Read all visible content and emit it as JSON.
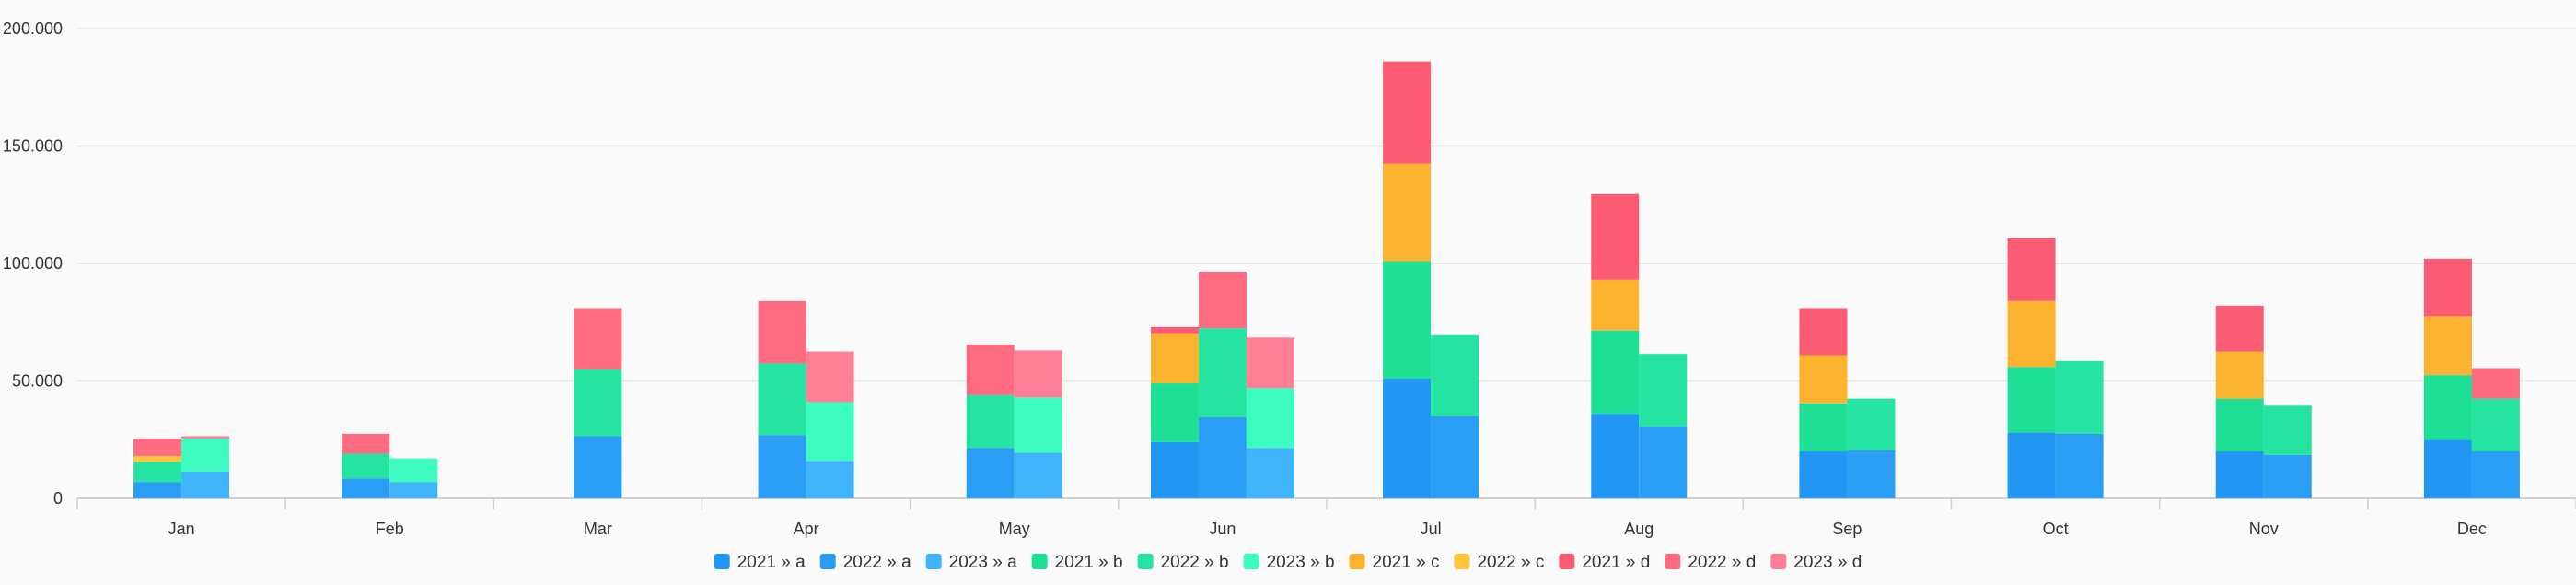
{
  "chart_data": {
    "type": "bar",
    "stacked": true,
    "grid": true,
    "legend_position": "bottom",
    "ylim": [
      0,
      200000
    ],
    "y_ticks": [
      {
        "value": 0,
        "label": "0"
      },
      {
        "value": 50000,
        "label": "50.000"
      },
      {
        "value": 100000,
        "label": "100.000"
      },
      {
        "value": 150000,
        "label": "150.000"
      },
      {
        "value": 200000,
        "label": "200.000"
      }
    ],
    "categories": [
      "Jan",
      "Feb",
      "Mar",
      "Apr",
      "May",
      "Jun",
      "Jul",
      "Aug",
      "Sep",
      "Oct",
      "Nov",
      "Dec"
    ],
    "stack_groups": [
      "2021",
      "2022",
      "2023"
    ],
    "stack_order": [
      "a",
      "b",
      "c",
      "d"
    ],
    "series": [
      {
        "name": "2021 » a",
        "group": "2021",
        "stack": "a",
        "color": "#2196f3",
        "values": [
          null,
          null,
          null,
          null,
          null,
          24000,
          51000,
          36000,
          20000,
          28000,
          20000,
          25000
        ]
      },
      {
        "name": "2022 » a",
        "group": "2022",
        "stack": "a",
        "color": "#2a9df4",
        "values": [
          7000,
          8500,
          26500,
          27000,
          21500,
          34500,
          35000,
          30500,
          20500,
          27500,
          18500,
          20000
        ]
      },
      {
        "name": "2023 » a",
        "group": "2023",
        "stack": "a",
        "color": "#40b4fb",
        "values": [
          11500,
          7000,
          null,
          16000,
          19500,
          21500,
          null,
          null,
          null,
          null,
          null,
          null
        ]
      },
      {
        "name": "2021 » b",
        "group": "2021",
        "stack": "b",
        "color": "#1de096",
        "values": [
          null,
          null,
          null,
          null,
          null,
          25000,
          50000,
          35500,
          20500,
          28000,
          22500,
          27500
        ]
      },
      {
        "name": "2022 » b",
        "group": "2022",
        "stack": "b",
        "color": "#25e3a0",
        "values": [
          8500,
          10500,
          28500,
          30500,
          22500,
          38000,
          34500,
          31000,
          22000,
          31000,
          21000,
          22500
        ]
      },
      {
        "name": "2023 » b",
        "group": "2023",
        "stack": "b",
        "color": "#3cfcc0",
        "values": [
          14000,
          10000,
          null,
          25000,
          23500,
          25500,
          null,
          null,
          null,
          null,
          null,
          null
        ]
      },
      {
        "name": "2021 » c",
        "group": "2021",
        "stack": "c",
        "color": "#fbb32f",
        "values": [
          null,
          null,
          null,
          null,
          null,
          21000,
          41500,
          21500,
          20500,
          28000,
          20000,
          25000
        ]
      },
      {
        "name": "2022 » c",
        "group": "2022",
        "stack": "c",
        "color": "#fcc53c",
        "values": [
          2500,
          null,
          null,
          null,
          null,
          null,
          null,
          null,
          null,
          null,
          null,
          null
        ]
      },
      {
        "name": "2021 » d",
        "group": "2021",
        "stack": "d",
        "color": "#fb5b73",
        "values": [
          null,
          null,
          null,
          null,
          null,
          3000,
          43500,
          36500,
          20000,
          27000,
          19500,
          24500
        ]
      },
      {
        "name": "2022 » d",
        "group": "2022",
        "stack": "d",
        "color": "#ff6b81",
        "values": [
          7500,
          8500,
          26000,
          26500,
          21500,
          24000,
          null,
          null,
          null,
          null,
          null,
          13000
        ]
      },
      {
        "name": "2023 » d",
        "group": "2023",
        "stack": "d",
        "color": "#ff8096",
        "values": [
          1000,
          null,
          null,
          21500,
          20000,
          21500,
          null,
          null,
          null,
          null,
          null,
          null
        ]
      }
    ]
  }
}
